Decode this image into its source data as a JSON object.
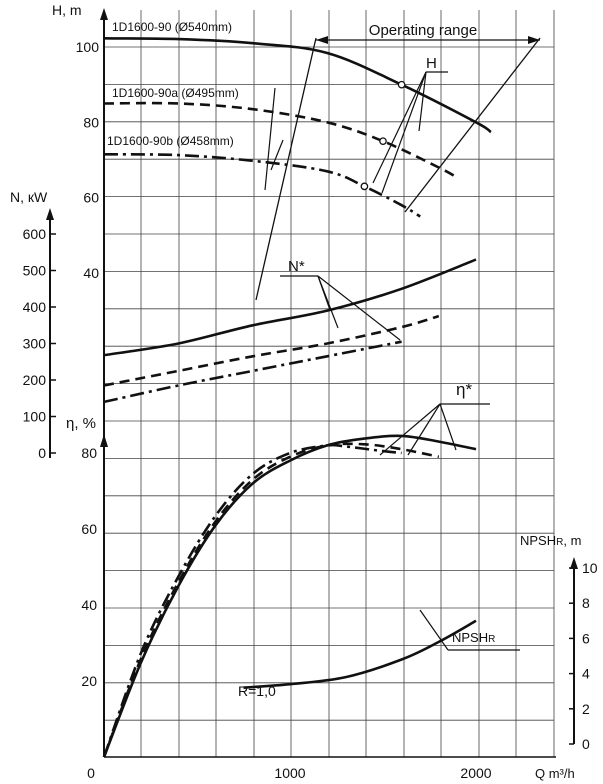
{
  "chart_data": {
    "type": "line",
    "x_axis": {
      "label": "Q m³/h",
      "ticks": [
        0,
        1000,
        2000
      ],
      "range": [
        0,
        2500
      ]
    },
    "axes": {
      "H": {
        "label": "H, m",
        "ticks": [
          40,
          60,
          80,
          100
        ],
        "range": [
          0,
          107
        ]
      },
      "N": {
        "label": "N, кW",
        "ticks": [
          0,
          100,
          200,
          300,
          400,
          500,
          600
        ],
        "range": [
          0,
          650
        ]
      },
      "eta": {
        "label": "η, %",
        "ticks": [
          20,
          40,
          60,
          80
        ],
        "range": [
          0,
          86
        ]
      },
      "npsh": {
        "label": "NPSH",
        "label_sub": "R",
        "label_suffix": ", m",
        "ticks": [
          0,
          2,
          4,
          6,
          8,
          10
        ],
        "range": [
          0,
          10.5
        ]
      }
    },
    "grid": true,
    "legend": "inline labels",
    "series": [
      {
        "name": "1D1600-90 (Ø540mm)",
        "axis": "H",
        "style": "solid",
        "points": [
          [
            0,
            102.3
          ],
          [
            400,
            102.1
          ],
          [
            800,
            101
          ],
          [
            1200,
            98.4
          ],
          [
            1600,
            90
          ],
          [
            2000,
            80
          ],
          [
            2080,
            77.4
          ]
        ],
        "marker": [
          1600,
          90
        ]
      },
      {
        "name": "1D1600-90a (Ø495mm)",
        "axis": "H",
        "style": "dashed",
        "points": [
          [
            0,
            85
          ],
          [
            400,
            85
          ],
          [
            800,
            83.5
          ],
          [
            1200,
            80
          ],
          [
            1500,
            75
          ],
          [
            1800,
            68
          ],
          [
            1900,
            65.3
          ]
        ],
        "marker": [
          1500,
          75
        ]
      },
      {
        "name": "1D1600-90b (Ø458mm)",
        "axis": "H",
        "style": "dashdot",
        "points": [
          [
            0,
            71.5
          ],
          [
            400,
            71.3
          ],
          [
            800,
            69.8
          ],
          [
            1200,
            67
          ],
          [
            1400,
            63
          ],
          [
            1600,
            58
          ],
          [
            1700,
            55
          ]
        ],
        "marker": [
          1400,
          63
        ]
      },
      {
        "axis": "N",
        "style": "solid",
        "points": [
          [
            0,
            268
          ],
          [
            400,
            300
          ],
          [
            800,
            350
          ],
          [
            1200,
            390
          ],
          [
            1600,
            450
          ],
          [
            2000,
            530
          ]
        ]
      },
      {
        "axis": "N",
        "style": "dashed",
        "points": [
          [
            0,
            185
          ],
          [
            400,
            225
          ],
          [
            800,
            265
          ],
          [
            1200,
            300
          ],
          [
            1600,
            345
          ],
          [
            1800,
            375
          ]
        ]
      },
      {
        "axis": "N",
        "style": "dashdot",
        "points": [
          [
            0,
            140
          ],
          [
            400,
            185
          ],
          [
            800,
            225
          ],
          [
            1200,
            265
          ],
          [
            1600,
            305
          ]
        ]
      },
      {
        "axis": "eta",
        "style": "solid",
        "points": [
          [
            0,
            0
          ],
          [
            200,
            25
          ],
          [
            400,
            45
          ],
          [
            600,
            61
          ],
          [
            800,
            72
          ],
          [
            1000,
            78
          ],
          [
            1200,
            82
          ],
          [
            1400,
            83.8
          ],
          [
            1600,
            84.5
          ],
          [
            1800,
            83
          ],
          [
            2000,
            81
          ]
        ]
      },
      {
        "axis": "eta",
        "style": "dashed",
        "points": [
          [
            0,
            0
          ],
          [
            200,
            26
          ],
          [
            400,
            46
          ],
          [
            600,
            62
          ],
          [
            800,
            73
          ],
          [
            1000,
            79
          ],
          [
            1200,
            82
          ],
          [
            1400,
            82.3
          ],
          [
            1600,
            81
          ],
          [
            1800,
            79
          ]
        ]
      },
      {
        "axis": "eta",
        "style": "dashdot",
        "points": [
          [
            0,
            0
          ],
          [
            200,
            27.5
          ],
          [
            400,
            47.5
          ],
          [
            600,
            63.5
          ],
          [
            800,
            74.5
          ],
          [
            1000,
            80
          ],
          [
            1200,
            82
          ],
          [
            1300,
            81.7
          ],
          [
            1500,
            80.5
          ],
          [
            1600,
            80
          ]
        ]
      },
      {
        "axis": "npsh",
        "style": "solid",
        "points": [
          [
            750,
            3.2
          ],
          [
            1000,
            3.4
          ],
          [
            1300,
            3.8
          ],
          [
            1600,
            4.8
          ],
          [
            1800,
            5.8
          ],
          [
            2000,
            7.0
          ]
        ]
      }
    ],
    "annotations": {
      "operating_range": "Operating range",
      "H": "H",
      "N": "N*",
      "eta": "η*",
      "npsh_main": "NPSH",
      "npsh_sub": "R",
      "r_value": "R=1,0"
    }
  },
  "colors": {
    "grid": "#444444",
    "curve": "#111111",
    "axis": "#111111",
    "background": "#ffffff"
  }
}
